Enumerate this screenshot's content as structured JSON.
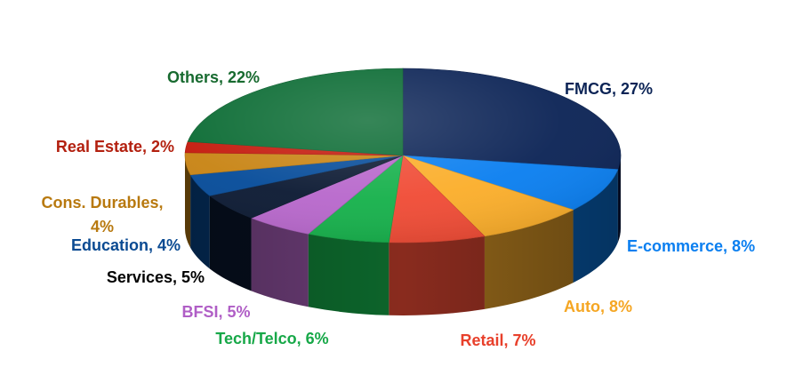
{
  "chart_data": {
    "type": "pie",
    "title": "",
    "legend": "none",
    "slices": [
      {
        "label": "FMCG, 27%",
        "category": "FMCG",
        "value": 27,
        "color": "#0c2456",
        "text_color": "#0c2456"
      },
      {
        "label": "E-commerce, 8%",
        "category": "E-commerce",
        "value": 8,
        "color": "#0b7ff0",
        "text_color": "#0b7ff0"
      },
      {
        "label": "Auto, 8%",
        "category": "Auto",
        "value": 8,
        "color": "#fbae2b",
        "text_color": "#f5a623"
      },
      {
        "label": "Retail, 7%",
        "category": "Retail",
        "value": 7,
        "color": "#f04c36",
        "text_color": "#e8402b"
      },
      {
        "label": "Tech/Telco, 6%",
        "category": "Tech/Telco",
        "value": 6,
        "color": "#17b14c",
        "text_color": "#17a848"
      },
      {
        "label": "BFSI, 5%",
        "category": "BFSI",
        "value": 5,
        "color": "#b868cc",
        "text_color": "#b05ec6"
      },
      {
        "label": "Services, 5%",
        "category": "Services",
        "value": 5,
        "color": "#0c1a33",
        "text_color": "#000000"
      },
      {
        "label": "Education, 4%",
        "category": "Education",
        "value": 4,
        "color": "#064c9a",
        "text_color": "#0a4a92"
      },
      {
        "label": [
          "Cons. Durables,",
          "4%"
        ],
        "category": "Cons. Durables",
        "value": 4,
        "color": "#c88414",
        "text_color": "#b8790f"
      },
      {
        "label": "Real Estate, 2%",
        "category": "Real Estate",
        "value": 2,
        "color": "#c4190c",
        "text_color": "#b3200f"
      },
      {
        "label": "Others, 22%",
        "category": "Others",
        "value": 22,
        "color": "#0a6b33",
        "text_color": "#176a2f"
      }
    ]
  }
}
